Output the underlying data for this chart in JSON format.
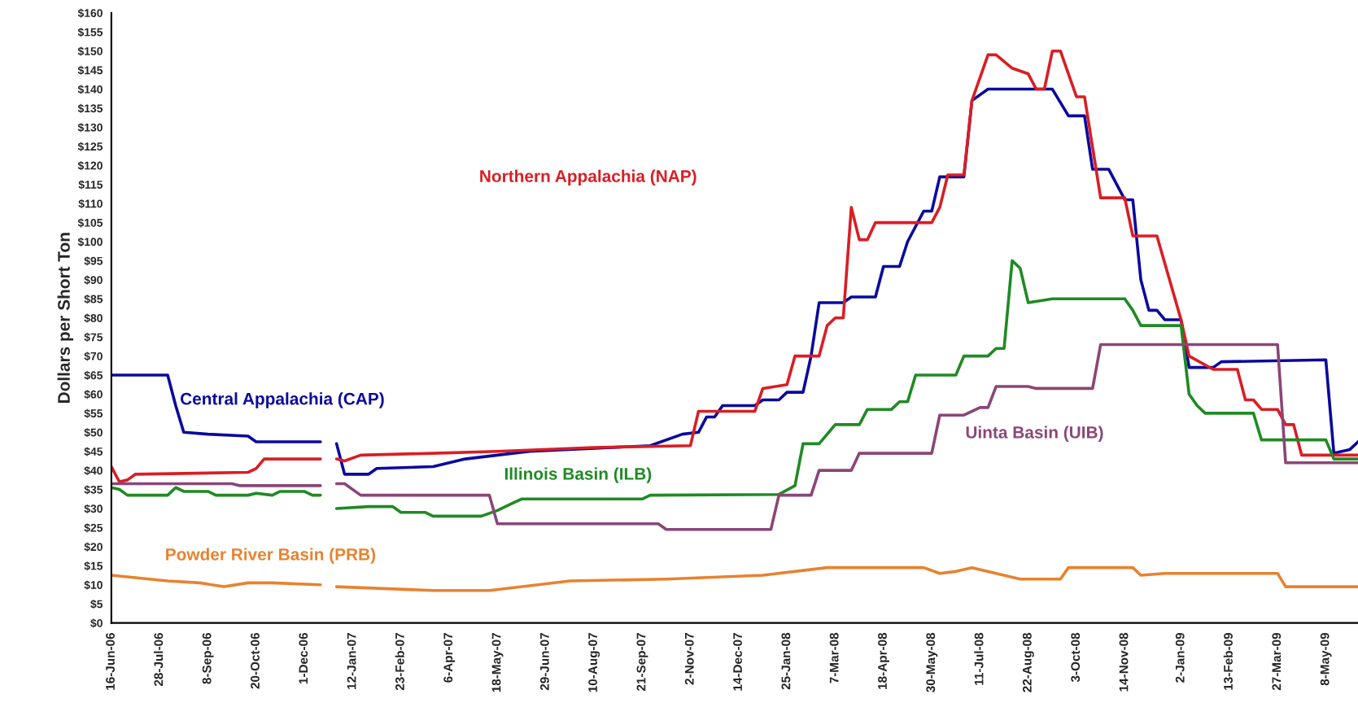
{
  "chart_data": {
    "type": "line",
    "ylabel": "Dollars per Short Ton",
    "ylim": [
      0,
      160
    ],
    "yticks": [
      {
        "value": 0,
        "label": "$0"
      },
      {
        "value": 5,
        "label": "$5"
      },
      {
        "value": 10,
        "label": "$10"
      },
      {
        "value": 15,
        "label": "$15"
      },
      {
        "value": 20,
        "label": "$20"
      },
      {
        "value": 25,
        "label": "$25"
      },
      {
        "value": 30,
        "label": "$30"
      },
      {
        "value": 35,
        "label": "$35"
      },
      {
        "value": 40,
        "label": "$40"
      },
      {
        "value": 45,
        "label": "$45"
      },
      {
        "value": 50,
        "label": "$50"
      },
      {
        "value": 55,
        "label": "$55"
      },
      {
        "value": 60,
        "label": "$60"
      },
      {
        "value": 65,
        "label": "$65"
      },
      {
        "value": 70,
        "label": "$70"
      },
      {
        "value": 75,
        "label": "$75"
      },
      {
        "value": 80,
        "label": "$80"
      },
      {
        "value": 85,
        "label": "$85"
      },
      {
        "value": 90,
        "label": "$90"
      },
      {
        "value": 95,
        "label": "$95"
      },
      {
        "value": 100,
        "label": "$100"
      },
      {
        "value": 105,
        "label": "$105"
      },
      {
        "value": 110,
        "label": "$110"
      },
      {
        "value": 115,
        "label": "$115"
      },
      {
        "value": 120,
        "label": "$120"
      },
      {
        "value": 125,
        "label": "$125"
      },
      {
        "value": 130,
        "label": "$130"
      },
      {
        "value": 135,
        "label": "$135"
      },
      {
        "value": 140,
        "label": "$140"
      },
      {
        "value": 145,
        "label": "$145"
      },
      {
        "value": 150,
        "label": "$150"
      },
      {
        "value": 155,
        "label": "$155"
      },
      {
        "value": 160,
        "label": "$160"
      }
    ],
    "xlim": [
      "2006-06-16",
      "2009-06-05"
    ],
    "xticks": [
      {
        "value": "2006-06-16",
        "label": "16-Jun-06"
      },
      {
        "value": "2006-07-28",
        "label": "28-Jul-06"
      },
      {
        "value": "2006-09-08",
        "label": "8-Sep-06"
      },
      {
        "value": "2006-10-20",
        "label": "20-Oct-06"
      },
      {
        "value": "2006-12-01",
        "label": "1-Dec-06"
      },
      {
        "value": "2007-01-12",
        "label": "12-Jan-07"
      },
      {
        "value": "2007-02-23",
        "label": "23-Feb-07"
      },
      {
        "value": "2007-04-06",
        "label": "6-Apr-07"
      },
      {
        "value": "2007-05-18",
        "label": "18-May-07"
      },
      {
        "value": "2007-06-29",
        "label": "29-Jun-07"
      },
      {
        "value": "2007-08-10",
        "label": "10-Aug-07"
      },
      {
        "value": "2007-09-21",
        "label": "21-Sep-07"
      },
      {
        "value": "2007-11-02",
        "label": "2-Nov-07"
      },
      {
        "value": "2007-12-14",
        "label": "14-Dec-07"
      },
      {
        "value": "2008-01-25",
        "label": "25-Jan-08"
      },
      {
        "value": "2008-03-07",
        "label": "7-Mar-08"
      },
      {
        "value": "2008-04-18",
        "label": "18-Apr-08"
      },
      {
        "value": "2008-05-30",
        "label": "30-May-08"
      },
      {
        "value": "2008-07-11",
        "label": "11-Jul-08"
      },
      {
        "value": "2008-08-22",
        "label": "22-Aug-08"
      },
      {
        "value": "2008-10-03",
        "label": "3-Oct-08"
      },
      {
        "value": "2008-11-14",
        "label": "14-Nov-08"
      },
      {
        "value": "2009-01-02",
        "label": "2-Jan-09"
      },
      {
        "value": "2009-02-13",
        "label": "13-Feb-09"
      },
      {
        "value": "2009-03-27",
        "label": "27-Mar-09"
      },
      {
        "value": "2009-05-08",
        "label": "8-May-09"
      }
    ],
    "series": [
      {
        "name": "Central Appalachia (CAP)",
        "color": "#0a0a9e",
        "x": [
          "2006-06-16",
          "2006-08-04",
          "2006-08-11",
          "2006-08-18",
          "2006-09-08",
          "2006-10-13",
          "2006-10-20",
          "2006-12-15",
          "2006-12-22",
          "2006-12-29",
          "2007-01-05",
          "2007-01-26",
          "2007-02-02",
          "2007-03-23",
          "2007-04-20",
          "2007-05-18",
          "2007-06-15",
          "2007-09-28",
          "2007-10-26",
          "2007-11-09",
          "2007-11-16",
          "2007-11-23",
          "2007-11-30",
          "2007-12-28",
          "2008-01-04",
          "2008-01-18",
          "2008-01-25",
          "2008-02-08",
          "2008-02-15",
          "2008-02-22",
          "2008-03-14",
          "2008-03-21",
          "2008-04-11",
          "2008-04-18",
          "2008-05-02",
          "2008-05-09",
          "2008-05-23",
          "2008-05-30",
          "2008-06-06",
          "2008-06-27",
          "2008-07-04",
          "2008-07-18",
          "2008-09-12",
          "2008-09-26",
          "2008-10-10",
          "2008-10-17",
          "2008-10-31",
          "2008-11-14",
          "2008-11-21",
          "2008-11-28",
          "2008-12-05",
          "2008-12-12",
          "2008-12-19",
          "2009-01-02",
          "2009-01-09",
          "2009-01-30",
          "2009-02-06",
          "2009-05-08",
          "2009-05-15",
          "2009-05-29",
          "2009-06-05"
        ],
        "values": [
          65,
          65,
          57,
          50,
          49.5,
          49,
          47.5,
          47.5,
          null,
          47,
          39,
          39,
          40.5,
          41,
          43,
          44,
          45,
          46.5,
          49.5,
          50,
          54,
          54,
          57,
          57,
          58.5,
          58.5,
          60.5,
          60.5,
          70,
          84,
          84,
          85.5,
          85.5,
          93.5,
          93.5,
          100,
          108,
          108,
          117,
          117,
          137,
          140,
          140,
          133,
          133,
          119,
          119,
          111,
          111,
          90,
          82,
          82,
          79.5,
          79.5,
          67,
          67,
          68.5,
          69,
          44.5,
          45.5,
          47.5
        ]
      },
      {
        "name": "Northern Appalachia (NAP)",
        "color": "#d91e24",
        "x": [
          "2006-06-16",
          "2006-06-23",
          "2006-06-30",
          "2006-07-07",
          "2006-10-13",
          "2006-10-20",
          "2006-10-27",
          "2006-12-15",
          "2006-12-22",
          "2006-12-29",
          "2007-01-05",
          "2007-01-19",
          "2007-03-23",
          "2007-05-18",
          "2007-08-10",
          "2007-11-02",
          "2007-11-09",
          "2007-12-28",
          "2008-01-04",
          "2008-01-25",
          "2008-02-01",
          "2008-02-22",
          "2008-02-29",
          "2008-03-07",
          "2008-03-14",
          "2008-03-21",
          "2008-03-28",
          "2008-04-04",
          "2008-04-11",
          "2008-05-30",
          "2008-06-06",
          "2008-06-13",
          "2008-06-27",
          "2008-07-04",
          "2008-07-18",
          "2008-07-25",
          "2008-08-08",
          "2008-08-22",
          "2008-08-29",
          "2008-09-05",
          "2008-09-12",
          "2008-09-19",
          "2008-09-26",
          "2008-10-03",
          "2008-10-10",
          "2008-10-24",
          "2008-11-14",
          "2008-11-21",
          "2008-12-12",
          "2009-01-02",
          "2009-01-09",
          "2009-01-30",
          "2009-02-20",
          "2009-02-27",
          "2009-03-06",
          "2009-03-13",
          "2009-03-27",
          "2009-04-03",
          "2009-04-10",
          "2009-04-17",
          "2009-06-05"
        ],
        "values": [
          41,
          37,
          37.5,
          39,
          39.5,
          40.5,
          43,
          43,
          null,
          43,
          42.5,
          44,
          44.5,
          45,
          46,
          46.5,
          55.5,
          55.5,
          61.5,
          62.5,
          70,
          70,
          78,
          80,
          80,
          109,
          100.5,
          100.5,
          105,
          105,
          109,
          117.5,
          117.5,
          137,
          149,
          149,
          145.5,
          144,
          140,
          140,
          150,
          150,
          144,
          138,
          138,
          111.5,
          111.5,
          101.5,
          101.5,
          79.5,
          70,
          66.5,
          66.5,
          58.5,
          58.5,
          56,
          56,
          52,
          52,
          44,
          44
        ]
      },
      {
        "name": "Illinois Basin (ILB)",
        "color": "#1f8a24",
        "x": [
          "2006-06-16",
          "2006-06-23",
          "2006-06-30",
          "2006-08-04",
          "2006-08-11",
          "2006-08-18",
          "2006-09-08",
          "2006-09-15",
          "2006-10-13",
          "2006-10-20",
          "2006-11-03",
          "2006-11-10",
          "2006-12-01",
          "2006-12-08",
          "2006-12-15",
          "2006-12-22",
          "2006-12-29",
          "2007-01-26",
          "2007-02-16",
          "2007-02-23",
          "2007-03-16",
          "2007-03-23",
          "2007-05-04",
          "2007-05-18",
          "2007-06-01",
          "2007-06-08",
          "2007-09-21",
          "2007-09-28",
          "2008-01-18",
          "2008-02-01",
          "2008-02-08",
          "2008-02-22",
          "2008-03-07",
          "2008-03-28",
          "2008-04-04",
          "2008-04-25",
          "2008-05-02",
          "2008-05-09",
          "2008-05-16",
          "2008-06-20",
          "2008-06-27",
          "2008-07-18",
          "2008-07-25",
          "2008-08-01",
          "2008-08-08",
          "2008-08-15",
          "2008-08-22",
          "2008-09-12",
          "2008-11-14",
          "2008-11-21",
          "2008-11-28",
          "2009-01-02",
          "2009-01-09",
          "2009-01-16",
          "2009-01-23",
          "2009-03-06",
          "2009-03-13",
          "2009-05-08",
          "2009-05-15",
          "2009-06-05"
        ],
        "values": [
          35.5,
          35,
          33.5,
          33.5,
          35.5,
          34.5,
          34.5,
          33.5,
          33.5,
          34,
          33.5,
          34.5,
          34.5,
          33.5,
          33.5,
          null,
          30,
          30.5,
          30.5,
          29,
          29,
          28,
          28,
          29.5,
          31.5,
          32.5,
          32.5,
          33.5,
          33.7,
          36,
          47,
          47,
          52,
          52,
          56,
          56,
          58,
          58,
          65,
          65,
          70,
          70,
          72,
          72,
          95,
          93,
          84,
          85,
          85,
          82,
          78,
          78,
          60,
          57,
          55,
          55,
          48,
          48,
          43,
          43
        ]
      },
      {
        "name": "Uinta Basin (UIB)",
        "color": "#8a4678",
        "x": [
          "2006-06-16",
          "2006-09-29",
          "2006-10-06",
          "2006-12-15",
          "2006-12-22",
          "2006-12-29",
          "2007-01-05",
          "2007-01-19",
          "2007-05-11",
          "2007-05-18",
          "2007-10-05",
          "2007-10-12",
          "2008-01-11",
          "2008-01-18",
          "2008-02-15",
          "2008-02-22",
          "2008-03-21",
          "2008-03-28",
          "2008-05-30",
          "2008-06-06",
          "2008-06-27",
          "2008-07-11",
          "2008-07-18",
          "2008-07-25",
          "2008-08-22",
          "2008-08-29",
          "2008-10-17",
          "2008-10-24",
          "2009-03-27",
          "2009-04-03",
          "2009-06-05"
        ],
        "values": [
          36.5,
          36.5,
          36,
          36,
          null,
          36.5,
          36.5,
          33.5,
          33.5,
          26,
          26,
          24.5,
          24.5,
          33.5,
          33.5,
          40,
          40,
          44.5,
          44.5,
          54.5,
          54.5,
          56.5,
          56.5,
          62,
          62,
          61.5,
          61.5,
          73,
          73,
          42,
          42
        ]
      },
      {
        "name": "Powder River Basin (PRB)",
        "color": "#e8822f",
        "x": [
          "2006-06-16",
          "2006-08-04",
          "2006-09-01",
          "2006-09-22",
          "2006-10-13",
          "2006-11-03",
          "2006-12-15",
          "2006-12-22",
          "2006-12-29",
          "2007-03-23",
          "2007-05-11",
          "2007-06-22",
          "2007-07-20",
          "2007-10-12",
          "2008-01-04",
          "2008-02-29",
          "2008-05-09",
          "2008-05-23",
          "2008-06-06",
          "2008-06-20",
          "2008-07-04",
          "2008-07-25",
          "2008-08-15",
          "2008-09-19",
          "2008-09-26",
          "2008-11-21",
          "2008-11-28",
          "2008-12-19",
          "2009-03-27",
          "2009-04-03",
          "2009-06-05"
        ],
        "values": [
          12.5,
          11,
          10.5,
          9.5,
          10.5,
          10.5,
          10,
          null,
          9.5,
          8.5,
          8.5,
          10,
          11,
          11.5,
          12.5,
          14.5,
          14.5,
          14.5,
          13,
          13.5,
          14.5,
          13,
          11.5,
          11.5,
          14.5,
          14.5,
          12.5,
          13,
          13,
          9.5,
          9.5
        ]
      }
    ]
  }
}
